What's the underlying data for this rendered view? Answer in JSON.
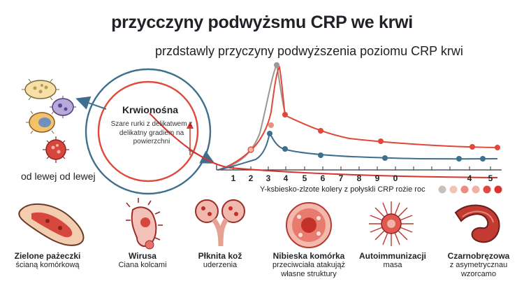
{
  "title": "przycczyny podwyżsmu CRP we krwi",
  "subtitle": "przdstawly przyczyny podwyższenia poziomu CRP krwi",
  "circle": {
    "title": "Krwionośna",
    "description": "Szare rurki z delikatwem z delikatny gradiem na powierzchni"
  },
  "left_caption": "od lewej od lewej",
  "axis_caption": "Y-ksbiesko-zlzote kolery z połyskli CRP rożie roc",
  "ticks": [
    "1",
    "2",
    "3",
    "4",
    "5",
    "6",
    "7",
    "8",
    "9",
    "0",
    "4",
    "5"
  ],
  "legend_dots": [
    "#c8c0bb",
    "#f2c3b6",
    "#e98f7f",
    "#f0b2a4",
    "#de4a3f",
    "#d8332c"
  ],
  "colors": {
    "red_line": "#e0483a",
    "blue_line": "#3e6f8e",
    "grey_line": "#9d9793",
    "dark_red": "#b8302a"
  },
  "causes": [
    {
      "name": "Zielone pażeczki",
      "desc": "ścianą komórkową",
      "icon": "bacteria-icon"
    },
    {
      "name": "Wirusa",
      "desc": "Ciana kolcami",
      "icon": "virus-icon"
    },
    {
      "name": "Płknita kož",
      "desc": "uderzenia",
      "icon": "tissue-icon"
    },
    {
      "name": "Nibieska komórka",
      "desc": "przeciwciała atakująż własne struktury",
      "icon": "cell-icon"
    },
    {
      "name": "Autoimmunizacji",
      "desc": "masa",
      "icon": "spiky-icon"
    },
    {
      "name": "Czarnobręzowa",
      "desc": "z asymetrycznau wzorcamo",
      "icon": "curved-icon"
    }
  ]
}
